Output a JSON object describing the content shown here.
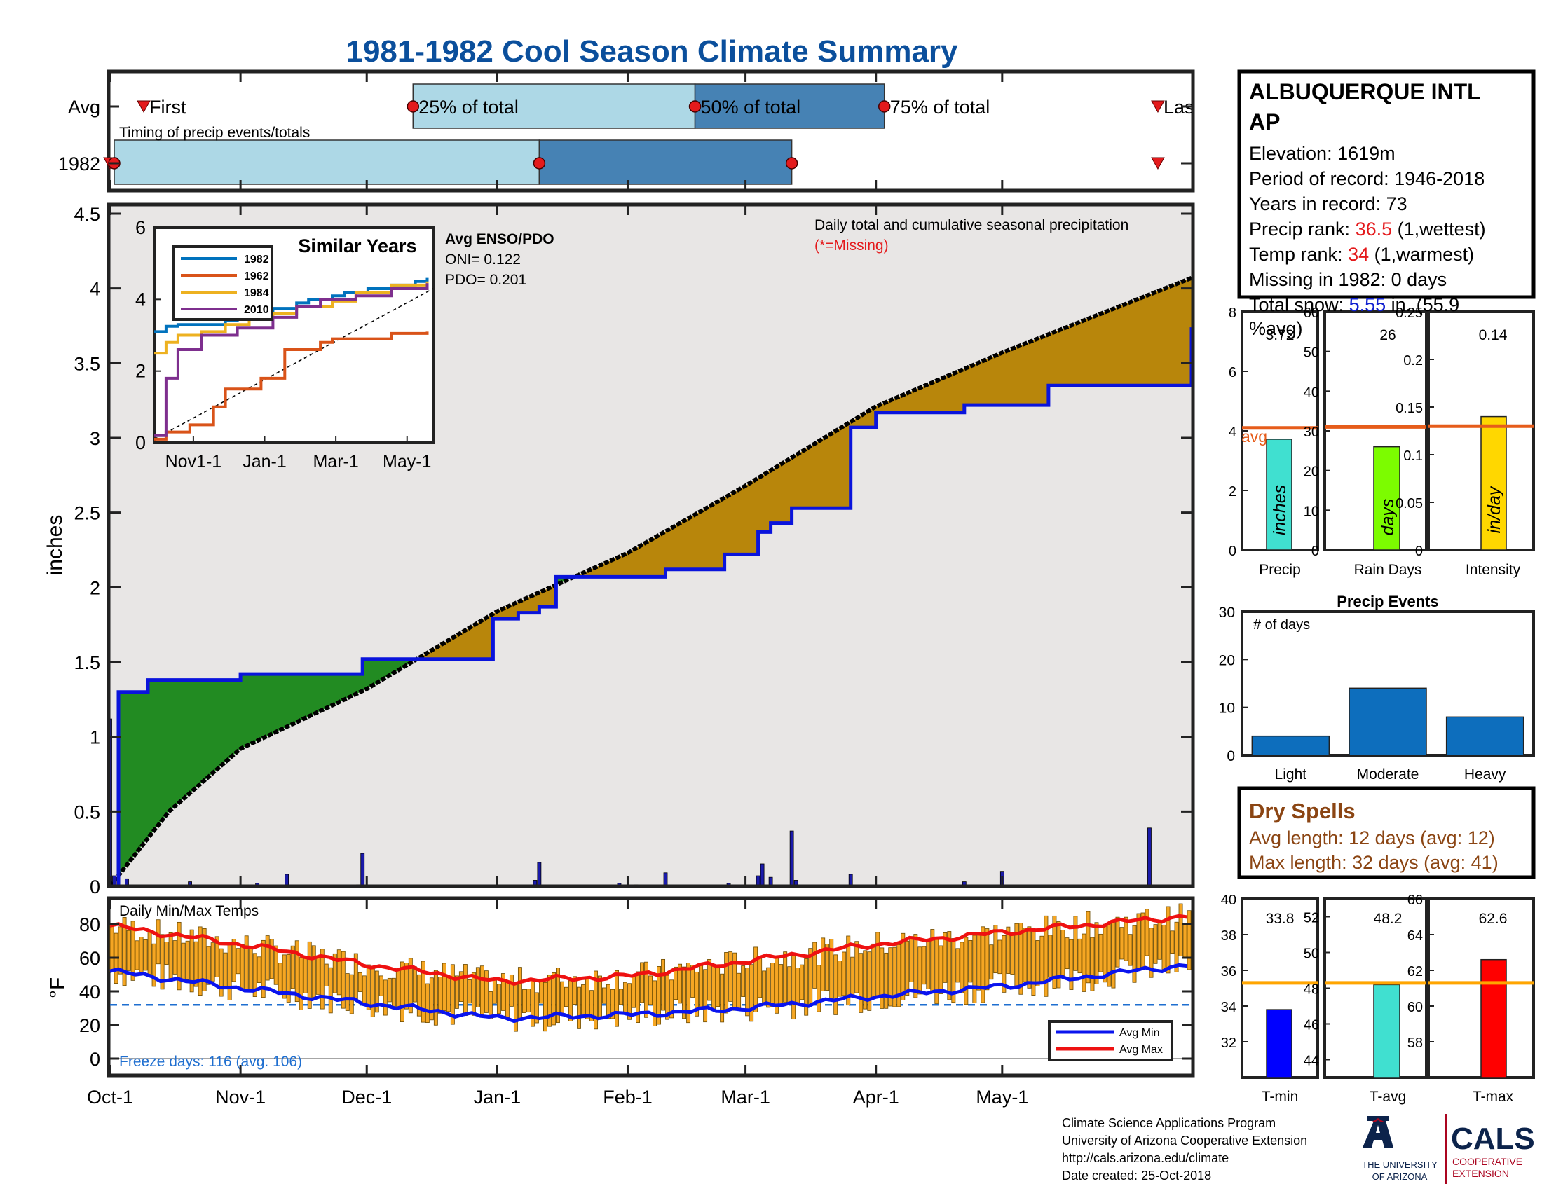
{
  "title": "1981-1982 Cool Season Climate Summary",
  "colors": {
    "title": "#0b4f9c",
    "green": "#228b22",
    "brown": "#b8860b",
    "light_bg": "#e8e6e5",
    "blue_line": "#0a14dc",
    "red": "#e41a1c",
    "orange_bar": "#f5a623",
    "light_blue": "#add8e6",
    "steel_blue": "#4682b4",
    "bar_blue": "#0d6ebd"
  },
  "timing_panel": {
    "row_labels": [
      "Avg",
      "1982"
    ],
    "caption": "Timing of precip events/totals",
    "labels": {
      "first": "First",
      "p25": "25% of total",
      "p50": "50% of total",
      "p75": "75% of total",
      "last": "Last"
    },
    "avg_dates": {
      "first": "1981-10-09",
      "p25": "1981-12-12",
      "p50": "1982-02-17",
      "p75": "1982-04-03",
      "last": "1982-06-07"
    },
    "y1982_dates": {
      "first": "1981-10-01",
      "p25": "1981-10-02",
      "p50": "1982-01-11",
      "p75": "1982-03-12",
      "last": "1982-06-07"
    }
  },
  "main_chart": {
    "ylabel": "inches",
    "yticks": [
      "0",
      "0.5",
      "1",
      "1.5",
      "2",
      "2.5",
      "3",
      "3.5",
      "4",
      "4.5"
    ],
    "annotation": "Daily total and cumulative seasonal precipitation",
    "missing_note": "(*=Missing)",
    "enso": {
      "title": "Avg ENSO/PDO",
      "oni": "ONI= 0.122",
      "pdo": "PDO= 0.201"
    },
    "inset": {
      "title": "Similar Years",
      "yticks": [
        "0",
        "2",
        "4",
        "6"
      ],
      "xticks": [
        "Nov1-1",
        "Jan-1",
        "Mar-1",
        "May-1"
      ],
      "legend": [
        "1982",
        "1962",
        "1984",
        "2010"
      ],
      "legend_colors": [
        "#0072bd",
        "#d95319",
        "#edb120",
        "#7e2f8e"
      ]
    }
  },
  "temp_chart": {
    "label": "Daily Min/Max Temps",
    "ylabel": "°F",
    "yticks": [
      "0",
      "20",
      "40",
      "60",
      "80"
    ],
    "freeze": "Freeze days: 116 (avg. 106)",
    "legend": [
      "Avg Min",
      "Avg Max"
    ]
  },
  "x_axis": {
    "ticks": [
      "Oct-1",
      "Nov-1",
      "Dec-1",
      "Jan-1",
      "Feb-1",
      "Mar-1",
      "Apr-1",
      "May-1"
    ]
  },
  "station": {
    "name": "ALBUQUERQUE INTL AP",
    "elevation": "Elevation: 1619m",
    "period": "Period of record: 1946-2018",
    "years": "Years in record: 73",
    "precip_rank_label": "Precip rank: ",
    "precip_rank_value": "36.5",
    "precip_rank_note": " (1,wettest)",
    "temp_rank_label": "Temp rank: ",
    "temp_rank_value": "34",
    "temp_rank_note": " (1,warmest)",
    "missing": "Missing in 1982: 0 days",
    "snow_label": "Total snow: ",
    "snow_value": "5.55",
    "snow_note": " in. (55.9",
    "snow_note2": "%avg)"
  },
  "mini_bars": [
    {
      "label": "Precip",
      "unit": "inches",
      "value": "3.72",
      "avg_label": "avg",
      "yticks": [
        "0",
        "2",
        "4",
        "6",
        "8"
      ]
    },
    {
      "label": "Rain Days",
      "unit": "days",
      "value": "26",
      "yticks": [
        "0",
        "10",
        "20",
        "30",
        "40",
        "50",
        "60"
      ]
    },
    {
      "label": "Intensity",
      "unit": "in/day",
      "value": "0.14",
      "yticks": [
        "0",
        "0.05",
        "0.1",
        "0.15",
        "0.2",
        "0.25"
      ]
    }
  ],
  "precip_events": {
    "title": "Precip Events",
    "ylabel": "# of days",
    "yticks": [
      "0",
      "10",
      "20",
      "30"
    ],
    "categories": [
      "Light",
      "Moderate",
      "Heavy"
    ]
  },
  "dry_spells": {
    "title": "Dry Spells",
    "avg": "Avg length: 12 days (avg: 12)",
    "max": "Max length: 32 days (avg: 41)"
  },
  "temp_bars": [
    {
      "label": "T-min",
      "value": "33.8",
      "yticks": [
        "32",
        "34",
        "36",
        "38",
        "40"
      ]
    },
    {
      "label": "T-avg",
      "value": "48.2",
      "yticks": [
        "44",
        "46",
        "48",
        "50",
        "52"
      ]
    },
    {
      "label": "T-max",
      "value": "62.6",
      "yticks": [
        "58",
        "60",
        "62",
        "64",
        "66"
      ]
    }
  ],
  "footer": {
    "line1": "Climate Science Applications Program",
    "line2": "University of Arizona Cooperative Extension",
    "line3": "http://cals.arizona.edu/climate",
    "line4": " Date created: 25-Oct-2018",
    "ua_text1": "THE UNIVERSITY",
    "ua_text2": "OF ARIZONA",
    "cals": "CALS",
    "cals_sub1": "COOPERATIVE",
    "cals_sub2": "EXTENSION"
  },
  "chart_data": [
    {
      "type": "area",
      "title": "Daily total and cumulative seasonal precipitation",
      "ylabel": "inches",
      "ylim": [
        0,
        4.5
      ],
      "x_range": [
        "1981-10-01",
        "1982-06-15"
      ],
      "cumulative_1982": {
        "x": [
          "1981-10-01",
          "1981-10-03",
          "1981-10-10",
          "1981-10-22",
          "1981-11-01",
          "1981-11-21",
          "1981-11-30",
          "1981-12-01",
          "1981-12-31",
          "1982-01-06",
          "1982-01-11",
          "1982-01-15",
          "1982-02-01",
          "1982-02-10",
          "1982-02-20",
          "1982-02-24",
          "1982-03-01",
          "1982-03-04",
          "1982-03-07",
          "1982-03-12",
          "1982-03-26",
          "1982-04-01",
          "1982-04-12",
          "1982-04-22",
          "1982-05-03",
          "1982-05-12",
          "1982-06-07",
          "1982-06-15"
        ],
        "y": [
          0,
          1.3,
          1.38,
          1.38,
          1.42,
          1.42,
          1.52,
          1.52,
          1.79,
          1.83,
          1.87,
          2.07,
          2.07,
          2.12,
          2.12,
          2.22,
          2.22,
          2.37,
          2.43,
          2.53,
          3.07,
          3.17,
          3.17,
          3.22,
          3.22,
          3.35,
          3.35,
          3.74
        ]
      },
      "cumulative_avg": {
        "x": [
          "1981-10-01",
          "1981-10-15",
          "1981-11-01",
          "1981-12-01",
          "1982-01-01",
          "1982-02-01",
          "1982-03-01",
          "1982-04-01",
          "1982-05-01",
          "1982-06-15"
        ],
        "y": [
          0,
          0.5,
          0.92,
          1.32,
          1.84,
          2.23,
          2.68,
          3.21,
          3.57,
          4.07
        ]
      },
      "daily_bars": {
        "x": [
          "1981-10-01",
          "1981-10-02",
          "1981-10-05",
          "1981-10-20",
          "1981-11-05",
          "1981-11-12",
          "1981-11-29",
          "1981-11-30",
          "1982-01-10",
          "1982-01-11",
          "1982-01-30",
          "1982-02-03",
          "1982-02-10",
          "1982-02-25",
          "1982-03-04",
          "1982-03-05",
          "1982-03-07",
          "1982-03-12",
          "1982-03-13",
          "1982-03-26",
          "1982-04-22",
          "1982-05-01",
          "1982-06-05"
        ],
        "y": [
          1.12,
          0.07,
          0.05,
          0.03,
          0.02,
          0.08,
          0.01,
          0.22,
          0.04,
          0.16,
          0.02,
          0.01,
          0.09,
          0.02,
          0.07,
          0.15,
          0.06,
          0.37,
          0.04,
          0.08,
          0.03,
          0.1,
          0.39
        ]
      }
    },
    {
      "type": "line",
      "title": "Similar Years",
      "ylim": [
        0,
        6
      ],
      "series": [
        {
          "name": "1982",
          "x": [
            0,
            10,
            20,
            60,
            70,
            90,
            100,
            120,
            130,
            150,
            160,
            180,
            200,
            220,
            230
          ],
          "y": [
            3.1,
            3.25,
            3.3,
            3.4,
            3.5,
            3.6,
            3.75,
            3.9,
            4.0,
            4.1,
            4.2,
            4.3,
            4.4,
            4.5,
            4.6
          ]
        },
        {
          "name": "1962",
          "x": [
            0,
            10,
            30,
            50,
            60,
            90,
            110,
            140,
            150,
            200,
            230
          ],
          "y": [
            0.1,
            0.3,
            0.5,
            1.0,
            1.5,
            1.8,
            2.6,
            2.8,
            2.9,
            3.05,
            3.1
          ]
        },
        {
          "name": "1984",
          "x": [
            0,
            10,
            20,
            40,
            60,
            80,
            100,
            120,
            150,
            170,
            200,
            230
          ],
          "y": [
            2.5,
            2.8,
            3.0,
            3.1,
            3.3,
            3.5,
            3.6,
            3.8,
            3.95,
            4.2,
            4.4,
            4.5
          ]
        },
        {
          "name": "2010",
          "x": [
            0,
            10,
            20,
            40,
            70,
            100,
            120,
            140,
            170,
            200,
            230
          ],
          "y": [
            0.2,
            1.8,
            2.6,
            3.0,
            3.2,
            3.5,
            3.8,
            4.0,
            4.1,
            4.3,
            4.45
          ]
        }
      ]
    },
    {
      "type": "line",
      "title": "Daily Min/Max Temps",
      "ylabel": "°F",
      "ylim": [
        -10,
        95
      ],
      "series": [
        {
          "name": "Avg Min",
          "x": [
            "1981-10-01",
            "1981-11-01",
            "1981-12-01",
            "1982-01-01",
            "1982-02-01",
            "1982-03-01",
            "1982-04-01",
            "1982-05-01",
            "1982-06-15"
          ],
          "y": [
            52,
            42,
            33,
            24,
            26,
            30,
            37,
            43,
            56
          ]
        },
        {
          "name": "Avg Max",
          "x": [
            "1981-10-01",
            "1981-11-01",
            "1981-12-01",
            "1982-01-01",
            "1982-02-01",
            "1982-03-01",
            "1982-04-01",
            "1982-05-01",
            "1982-06-15"
          ],
          "y": [
            79,
            68,
            56,
            46,
            49,
            58,
            68,
            75,
            85
          ]
        }
      ],
      "freeze_line": 32
    },
    {
      "type": "bar",
      "categories": [
        "Precip"
      ],
      "values": [
        3.72
      ],
      "avg": 4.1,
      "ylim": [
        0,
        8
      ]
    },
    {
      "type": "bar",
      "categories": [
        "Rain Days"
      ],
      "values": [
        26
      ],
      "avg": 31,
      "ylim": [
        0,
        60
      ]
    },
    {
      "type": "bar",
      "categories": [
        "Intensity"
      ],
      "values": [
        0.14
      ],
      "avg": 0.13,
      "ylim": [
        0,
        0.25
      ]
    },
    {
      "type": "bar",
      "title": "Precip Events",
      "categories": [
        "Light",
        "Moderate",
        "Heavy"
      ],
      "values": [
        4,
        14,
        8
      ],
      "ylim": [
        0,
        30
      ]
    },
    {
      "type": "bar",
      "categories": [
        "T-min"
      ],
      "values": [
        33.8
      ],
      "avg": 35.3,
      "ylim": [
        30,
        40
      ]
    },
    {
      "type": "bar",
      "categories": [
        "T-avg"
      ],
      "values": [
        48.2
      ],
      "avg": 48.3,
      "ylim": [
        43,
        53
      ]
    },
    {
      "type": "bar",
      "categories": [
        "T-max"
      ],
      "values": [
        62.6
      ],
      "avg": 61.3,
      "ylim": [
        56,
        66
      ]
    }
  ]
}
